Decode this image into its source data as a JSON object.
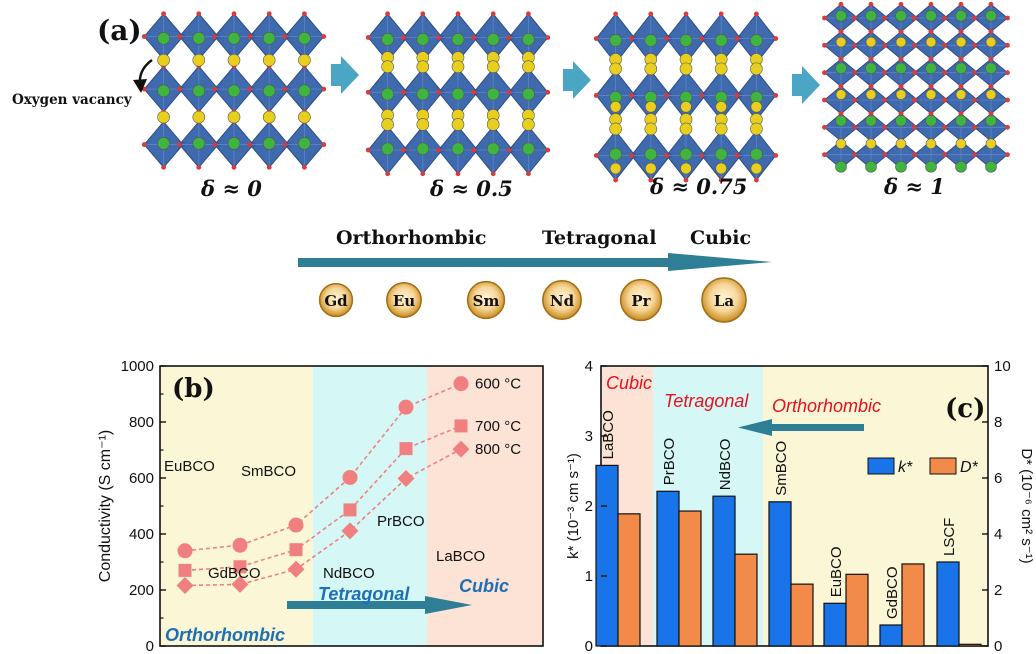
{
  "colors": {
    "oct": "#2f5ea8",
    "octDark": "#1c3f7c",
    "green": "#3fb43f",
    "yellow": "#e8cf1e",
    "oxygen": "#d93a3a",
    "arrow": "#4aa6c4",
    "panelArrow": "#2e7f96",
    "coral": "#f08080",
    "orth": "#fbf6d6",
    "tet": "#d5f7f6",
    "cub": "#fce3d6",
    "blue": "#1874e8",
    "orange": "#f28a4a",
    "red": "#e8101e",
    "regionBlue": "#1f6fb4"
  },
  "panel_a": {
    "label": "(a)",
    "vacancy_label": "Oxygen vacancy",
    "structures": [
      {
        "label": "δ ≈ 0",
        "yellow_rows": 2
      },
      {
        "label": "δ ≈ 0.5",
        "yellow_rows": 2
      },
      {
        "label": "δ ≈ 0.75",
        "yellow_rows": 2
      },
      {
        "label": "δ ≈ 1",
        "yellow_rows": 0
      }
    ],
    "phase_labels": [
      "Orthorhombic",
      "Tetragonal",
      "Cubic"
    ],
    "elements": [
      "Gd",
      "Eu",
      "Sm",
      "Nd",
      "Pr",
      "La"
    ],
    "element_sizes": [
      0.72,
      0.76,
      0.82,
      0.86,
      0.92,
      1.0
    ],
    "element_icon": "bead-icon",
    "process_arrow_icon": "right-arrow-icon"
  },
  "chart_data": [
    {
      "type": "line",
      "label": "(b)",
      "ylabel": "Conductivity (S cm⁻¹)",
      "ylim": [
        0,
        1000
      ],
      "yticks": [
        0,
        200,
        400,
        600,
        800,
        1000
      ],
      "materials": [
        "EuBCO",
        "GdBCO",
        "SmBCO",
        "NdBCO",
        "PrBCO",
        "LaBCO"
      ],
      "series": [
        {
          "name": "600 °C",
          "marker": "circle",
          "values": [
            340,
            360,
            432,
            602,
            853,
            937
          ]
        },
        {
          "name": "700 °C",
          "marker": "square",
          "values": [
            270,
            283,
            344,
            486,
            705,
            786
          ]
        },
        {
          "name": "800 °C",
          "marker": "diamond",
          "values": [
            216,
            220,
            274,
            411,
            598,
            703
          ]
        }
      ],
      "regions": [
        "Orthorhombic",
        "Tetragonal",
        "Cubic"
      ]
    },
    {
      "type": "bar",
      "label": "(c)",
      "categories": [
        "LaBCO",
        "PrBCO",
        "NdBCO",
        "SmBCO",
        "EuBCO",
        "GdBCO",
        "LSCF"
      ],
      "ylabel_left": "k* (10⁻³ cm s⁻¹)",
      "ylabel_right": "D* (10⁻⁶ cm² s⁻¹)",
      "ylim_left": [
        0,
        4
      ],
      "ylim_right": [
        0,
        10
      ],
      "yticks_left": [
        0,
        1,
        2,
        3,
        4
      ],
      "yticks_right": [
        0,
        2,
        4,
        6,
        8,
        10
      ],
      "series": [
        {
          "name": "k*",
          "axis": "left",
          "values": [
            2.58,
            2.21,
            2.14,
            2.06,
            0.61,
            0.3,
            1.2
          ]
        },
        {
          "name": "D*",
          "axis": "right",
          "values": [
            4.72,
            4.82,
            3.28,
            2.21,
            2.56,
            2.93,
            0.06
          ]
        }
      ],
      "regions": [
        "Cubic",
        "Tetragonal",
        "Orthorhombic"
      ]
    }
  ]
}
